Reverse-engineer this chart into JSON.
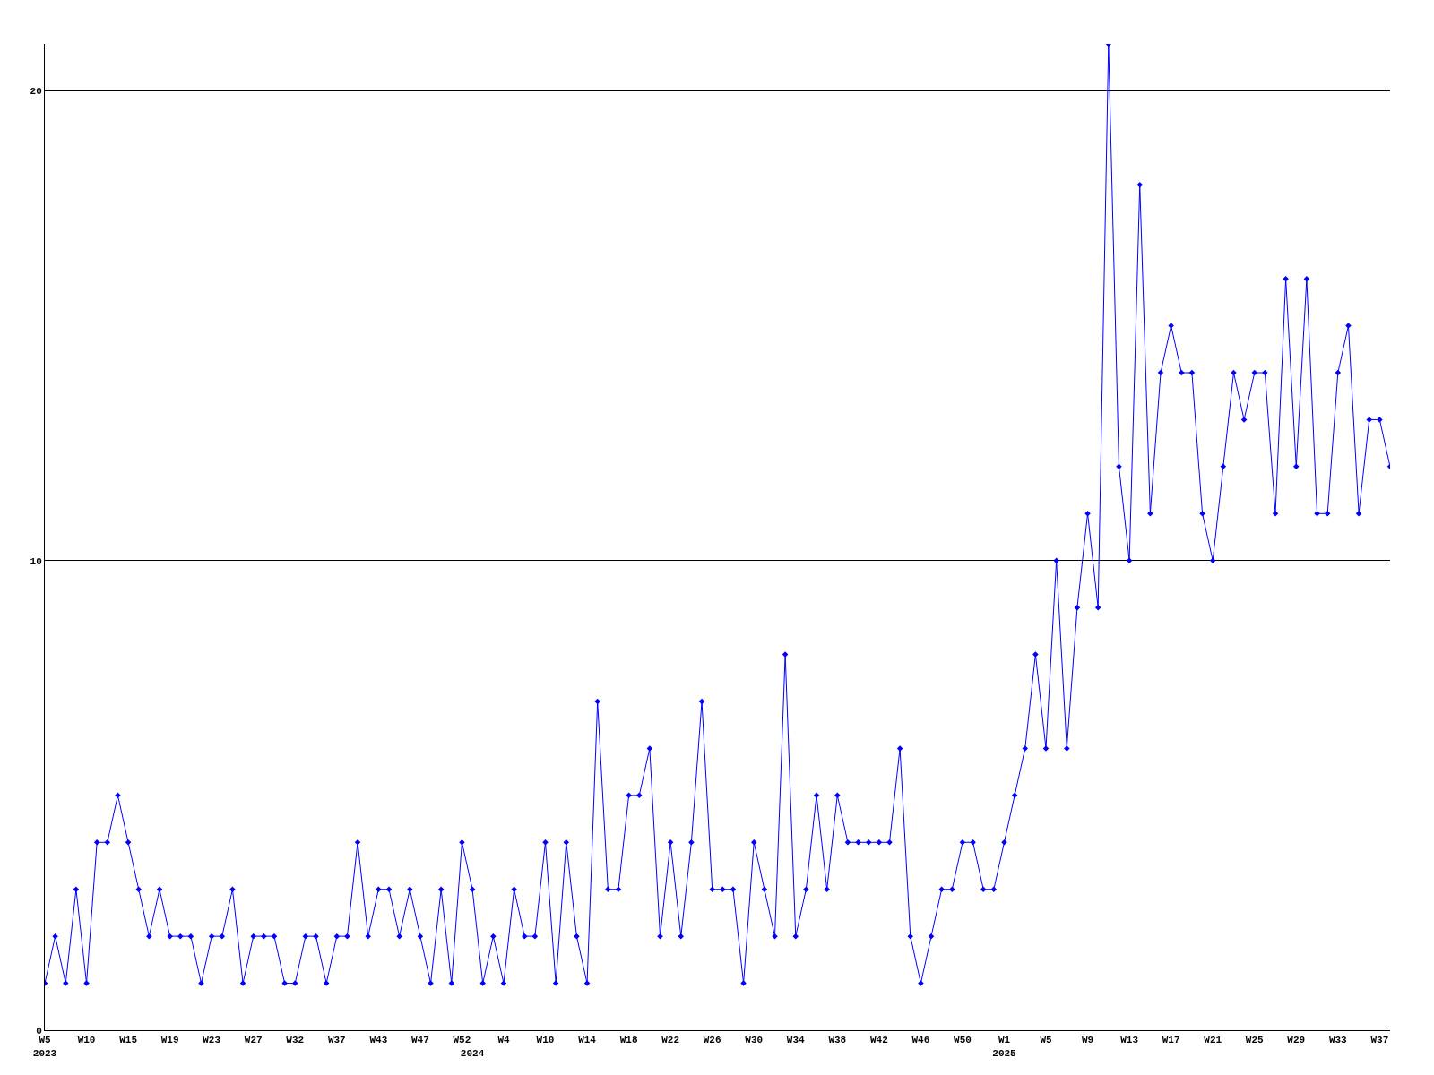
{
  "chart_data": {
    "type": "line",
    "categories": [
      "W5\n2023",
      null,
      null,
      null,
      "W10",
      null,
      null,
      null,
      "W15",
      null,
      null,
      null,
      "W19",
      null,
      null,
      null,
      "W23",
      null,
      null,
      null,
      "W27",
      null,
      null,
      null,
      "W32",
      null,
      null,
      null,
      "W37",
      null,
      null,
      null,
      "W43",
      null,
      null,
      null,
      "W47",
      null,
      null,
      null,
      "W52",
      "\n2024",
      null,
      null,
      "W4",
      null,
      null,
      null,
      "W10",
      null,
      null,
      null,
      "W14",
      null,
      null,
      null,
      "W18",
      null,
      null,
      null,
      "W22",
      null,
      null,
      null,
      "W26",
      null,
      null,
      null,
      "W30",
      null,
      null,
      null,
      "W34",
      null,
      null,
      null,
      "W38",
      null,
      null,
      null,
      "W42",
      null,
      null,
      null,
      "W46",
      null,
      null,
      null,
      "W50",
      null,
      null,
      null,
      "W1\n2025",
      null,
      null,
      null,
      "W5",
      null,
      null,
      null,
      "W9",
      null,
      null,
      null,
      "W13",
      null,
      null,
      null,
      "W17",
      null,
      null,
      null,
      "W21",
      null,
      null,
      null,
      "W25",
      null,
      null,
      null,
      "W29",
      null,
      null,
      null,
      "W33",
      null,
      null,
      null,
      "W37",
      null
    ],
    "series": [
      {
        "color": "#0000ff",
        "values": [
          1,
          2,
          1,
          3,
          1,
          4,
          4,
          5,
          4,
          3,
          2,
          3,
          2,
          2,
          2,
          1,
          2,
          2,
          3,
          1,
          2,
          2,
          2,
          1,
          1,
          2,
          2,
          1,
          2,
          2,
          4,
          2,
          3,
          3,
          2,
          3,
          2,
          1,
          3,
          1,
          4,
          3,
          1,
          2,
          1,
          3,
          2,
          2,
          4,
          1,
          4,
          2,
          1,
          7,
          3,
          3,
          5,
          5,
          6,
          2,
          4,
          2,
          4,
          7,
          3,
          3,
          3,
          1,
          4,
          3,
          2,
          8,
          2,
          3,
          5,
          3,
          5,
          4,
          4,
          4,
          4,
          4,
          6,
          2,
          1,
          2,
          3,
          3,
          4,
          4,
          3,
          3,
          4,
          5,
          6,
          8,
          6,
          10,
          6,
          9,
          11,
          9,
          21,
          12,
          10,
          18,
          11,
          14,
          15,
          14,
          14,
          11,
          10,
          12,
          14,
          13,
          14,
          14,
          11,
          16,
          12,
          16,
          11,
          11,
          14,
          15,
          11,
          13,
          13,
          12
        ]
      }
    ],
    "ylim": [
      0,
      21
    ],
    "yticks": [
      0,
      10,
      20
    ],
    "grid": "y",
    "legend": false,
    "marker": "diamond",
    "line_style": "solid"
  }
}
